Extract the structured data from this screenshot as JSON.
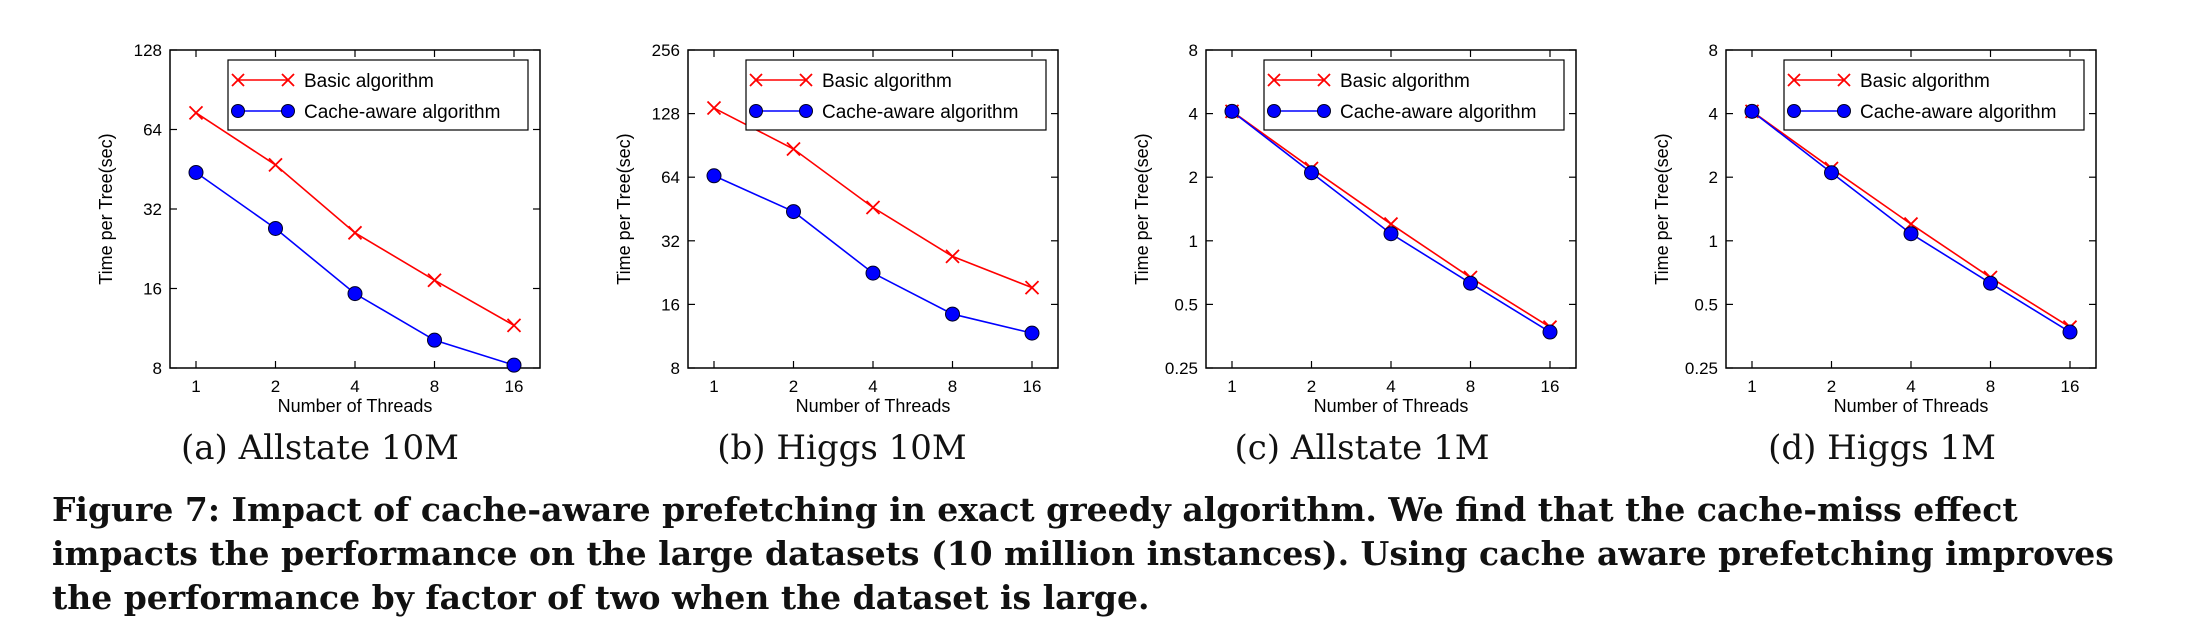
{
  "chart_data": [
    {
      "type": "line",
      "subcaption": "(a) Allstate 10M",
      "xlabel": "Number of Threads",
      "ylabel": "Time per Tree(sec)",
      "x": [
        1,
        2,
        4,
        8,
        16
      ],
      "x_scale": "log2",
      "y_scale": "log2",
      "ylim": [
        8,
        128
      ],
      "yticks": [
        "8",
        "16",
        "32",
        "64",
        "128"
      ],
      "xticks": [
        "1",
        "2",
        "4",
        "8",
        "16"
      ],
      "legend_position": "top-right",
      "series": [
        {
          "name": "Basic algorithm",
          "values": [
            74,
            47,
            26,
            17.2,
            11.6
          ],
          "color": "#ff0000",
          "marker": "x"
        },
        {
          "name": "Cache-aware algorithm",
          "values": [
            44,
            27,
            15.3,
            10.2,
            8.2
          ],
          "color": "#0000ff",
          "marker": "o"
        }
      ]
    },
    {
      "type": "line",
      "subcaption": "(b) Higgs 10M",
      "xlabel": "Number of Threads",
      "ylabel": "Time per Tree(sec)",
      "x": [
        1,
        2,
        4,
        8,
        16
      ],
      "x_scale": "log2",
      "y_scale": "log2",
      "ylim": [
        8,
        256
      ],
      "yticks": [
        "8",
        "16",
        "32",
        "64",
        "128",
        "256"
      ],
      "xticks": [
        "1",
        "2",
        "4",
        "8",
        "16"
      ],
      "legend_position": "top-right",
      "series": [
        {
          "name": "Basic algorithm",
          "values": [
            136,
            87,
            46,
            27,
            19.2
          ],
          "color": "#ff0000",
          "marker": "x"
        },
        {
          "name": "Cache-aware algorithm",
          "values": [
            65,
            44,
            22.5,
            14.4,
            11.7
          ],
          "color": "#0000ff",
          "marker": "o"
        }
      ]
    },
    {
      "type": "line",
      "subcaption": "(c) Allstate 1M",
      "xlabel": "Number of Threads",
      "ylabel": "Time per Tree(sec)",
      "x": [
        1,
        2,
        4,
        8,
        16
      ],
      "x_scale": "log2",
      "y_scale": "log2",
      "ylim": [
        0.25,
        8
      ],
      "yticks": [
        "0.25",
        "0.5",
        "1",
        "2",
        "4",
        "8"
      ],
      "xticks": [
        "1",
        "2",
        "4",
        "8",
        "16"
      ],
      "legend_position": "top-right",
      "series": [
        {
          "name": "Basic algorithm",
          "values": [
            4.1,
            2.2,
            1.2,
            0.67,
            0.39
          ],
          "color": "#ff0000",
          "marker": "x"
        },
        {
          "name": "Cache-aware algorithm",
          "values": [
            4.1,
            2.1,
            1.08,
            0.63,
            0.37
          ],
          "color": "#0000ff",
          "marker": "o"
        }
      ]
    },
    {
      "type": "line",
      "subcaption": "(d) Higgs 1M",
      "xlabel": "Number of Threads",
      "ylabel": "Time per Tree(sec)",
      "x": [
        1,
        2,
        4,
        8,
        16
      ],
      "x_scale": "log2",
      "y_scale": "log2",
      "ylim": [
        0.25,
        8
      ],
      "yticks": [
        "0.25",
        "0.5",
        "1",
        "2",
        "4",
        "8"
      ],
      "xticks": [
        "1",
        "2",
        "4",
        "8",
        "16"
      ],
      "legend_position": "top-right",
      "series": [
        {
          "name": "Basic algorithm",
          "values": [
            4.1,
            2.2,
            1.2,
            0.67,
            0.39
          ],
          "color": "#ff0000",
          "marker": "x"
        },
        {
          "name": "Cache-aware algorithm",
          "values": [
            4.1,
            2.1,
            1.08,
            0.63,
            0.37
          ],
          "color": "#0000ff",
          "marker": "o"
        }
      ]
    }
  ],
  "figure_caption": "Figure 7: Impact of cache-aware prefetching in exact greedy algorithm. We find that the cache-miss effect impacts the performance on the large datasets (10 million instances). Using cache aware prefetching improves the performance by factor of two when the dataset is large."
}
